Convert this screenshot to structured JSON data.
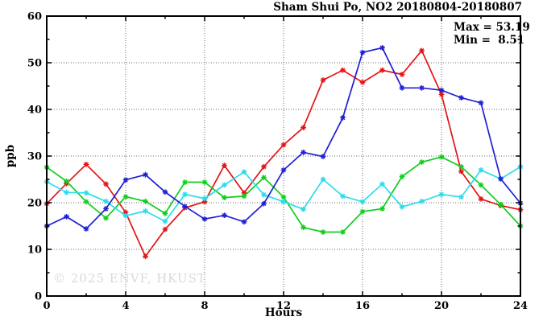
{
  "chart_data": {
    "type": "line",
    "title": "Sham Shui Po, NO2 20180804-20180807",
    "xlabel": "Hours",
    "ylabel": "ppb",
    "xlim": [
      0,
      24
    ],
    "ylim": [
      0,
      60
    ],
    "xticks": [
      0,
      4,
      8,
      12,
      16,
      20,
      24
    ],
    "yticks": [
      0,
      10,
      20,
      30,
      40,
      50,
      60
    ],
    "minor_xtick_step": 2,
    "minor_ytick_step": 5,
    "grid": "dotted-at-major-ticks",
    "legend_position": "none",
    "annotations": {
      "max_label": "Max = 53.19",
      "min_label": "Min =  8.51"
    },
    "watermark": "© 2025 ENVF, HKUST",
    "x": [
      0,
      1,
      2,
      3,
      4,
      5,
      6,
      7,
      8,
      9,
      10,
      11,
      12,
      13,
      14,
      15,
      16,
      17,
      18,
      19,
      20,
      21,
      22,
      23,
      24
    ],
    "series": [
      {
        "name": "day-1-red",
        "color": "#e41414",
        "values": [
          19.8,
          24.1,
          28.2,
          24.0,
          17.9,
          8.5,
          14.3,
          18.9,
          20.2,
          28.0,
          22.1,
          27.7,
          32.4,
          36.1,
          46.3,
          48.4,
          45.8,
          48.4,
          47.5,
          52.6,
          43.2,
          26.7,
          20.8,
          19.4,
          18.5
        ]
      },
      {
        "name": "day-2-green",
        "color": "#0fce1e",
        "values": [
          27.6,
          24.6,
          20.2,
          16.7,
          21.3,
          20.3,
          17.7,
          24.4,
          24.4,
          21.1,
          21.4,
          25.4,
          21.2,
          14.7,
          13.7,
          13.7,
          18.1,
          18.7,
          25.6,
          28.7,
          29.8,
          27.7,
          23.8,
          19.6,
          15.0
        ]
      },
      {
        "name": "day-3-cyan",
        "color": "#2bdcec",
        "values": [
          24.5,
          22.2,
          22.1,
          20.3,
          17.2,
          18.2,
          16.0,
          21.8,
          20.9,
          23.8,
          26.6,
          21.7,
          20.2,
          18.6,
          25.0,
          21.4,
          20.2,
          24.0,
          19.1,
          20.3,
          21.8,
          21.2,
          27.0,
          25.1,
          27.7
        ]
      },
      {
        "name": "day-4-blue",
        "color": "#1f1fd6",
        "values": [
          15.0,
          17.0,
          14.4,
          18.7,
          24.9,
          26.0,
          22.3,
          19.2,
          16.5,
          17.3,
          15.9,
          19.8,
          27.0,
          30.8,
          29.9,
          38.2,
          52.2,
          53.2,
          44.6,
          44.6,
          44.1,
          42.5,
          41.4,
          25.1,
          19.9
        ]
      }
    ],
    "plot_style": {
      "grid_color": "#6b6b6b",
      "axis_color": "#000000",
      "background": "#ffffff"
    }
  }
}
